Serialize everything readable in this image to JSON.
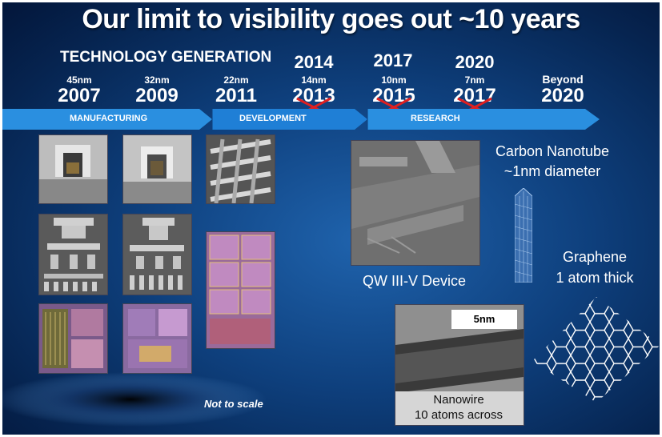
{
  "title": "Our limit to visibility goes out ~10 years",
  "technology_generation_label": "TECHNOLOGY GENERATION",
  "generations": [
    {
      "node": "45nm",
      "year": "2007"
    },
    {
      "node": "32nm",
      "year": "2009"
    },
    {
      "node": "22nm",
      "year": "2011"
    },
    {
      "node": "14nm",
      "year": "2013",
      "revised_year": "2014"
    },
    {
      "node": "10nm",
      "year": "2015",
      "revised_year": "2017"
    },
    {
      "node": "7nm",
      "year": "2017",
      "revised_year": "2020"
    },
    {
      "node": "Beyond",
      "year": "2020"
    }
  ],
  "phases": [
    "MANUFACTURING",
    "DEVELOPMENT",
    "RESEARCH"
  ],
  "labels": {
    "carbon_nanotube_line1": "Carbon Nanotube",
    "carbon_nanotube_line2": "~1nm diameter",
    "qw_device": "QW III-V Device",
    "graphene_line1": "Graphene",
    "graphene_line2": "1 atom thick",
    "scale_bar": "5nm",
    "nanowire_line1": "Nanowire",
    "nanowire_line2": "10 atoms across",
    "not_to_scale": "Not to scale"
  },
  "colors": {
    "arrow_blue": "#2a8fe0",
    "strike_red": "#e02020",
    "background": "#0e3f7c"
  }
}
